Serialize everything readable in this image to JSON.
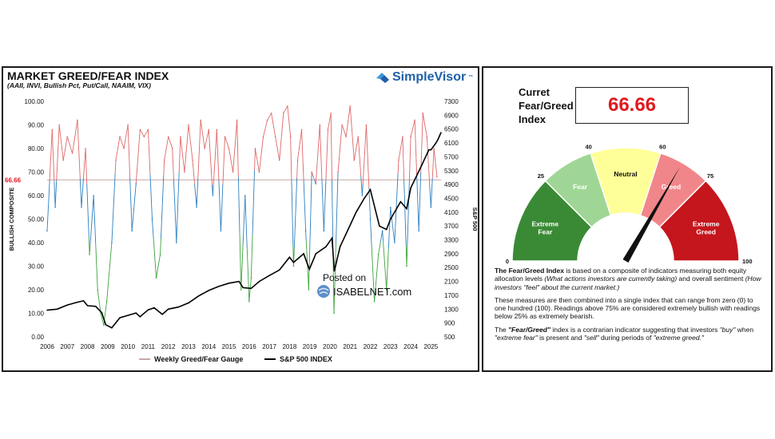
{
  "left": {
    "title": "MARKET GREED/FEAR INDEX",
    "subtitle": "(AAII, INVI, Bullish Pct, Put/Call, NAAIM, VIX)",
    "brand": "SimpleVisor",
    "brand_mark": "™",
    "watermark_line1": "Posted on",
    "watermark_line2": "ISABELNET.com",
    "legend_gauge": "Weekly Greed/Fear Gauge",
    "legend_sp": "S&P 500 INDEX"
  },
  "right": {
    "current_label": "Curret Fear/Greed Index",
    "current_value": "66.66",
    "gauge": {
      "value": 66.66,
      "bands": [
        {
          "label": "Extreme Fear",
          "from": 0,
          "to": 25,
          "color": "#3a8a35",
          "text_color": "#ffffff"
        },
        {
          "label": "Fear",
          "from": 25,
          "to": 40,
          "color": "#9fd695",
          "text_color": "#ffffff"
        },
        {
          "label": "Neutral",
          "from": 40,
          "to": 60,
          "color": "#ffff99",
          "text_color": "#111111"
        },
        {
          "label": "Greed",
          "from": 60,
          "to": 75,
          "color": "#f0868a",
          "text_color": "#ffffff"
        },
        {
          "label": "Extreme Greed",
          "from": 75,
          "to": 100,
          "color": "#c4161c",
          "text_color": "#ffffff"
        }
      ],
      "ticks": [
        {
          "label": "0",
          "value": 0
        },
        {
          "label": "25",
          "value": 25
        },
        {
          "label": "40",
          "value": 40
        },
        {
          "label": "60",
          "value": 60
        },
        {
          "label": "75",
          "value": 75
        },
        {
          "label": "100",
          "value": 100
        }
      ]
    },
    "desc1_bold": "The Fear/Greed Index",
    "desc1_a": " is based on a composite of indicators measuring both equity allocation levels ",
    "desc1_it": "(What actions investors are currently taking)",
    "desc1_b": " and overall sentiment ",
    "desc1_it2": "(How investors \"feel\" about the current market.)",
    "desc2": "These measures are then combined into a single index that can range from zero (0) to one hundred (100). Readings above 75% are considered extremely bullish with readings below 25% as extremely bearish.",
    "desc3_a": "The ",
    "desc3_bold": "\"Fear/Greed\"",
    "desc3_b": " index is a contrarian indicator suggesting that investors ",
    "desc3_it1": "\"buy\"",
    "desc3_c": " when ",
    "desc3_it2": "\"extreme fear\"",
    "desc3_d": " is present and ",
    "desc3_it3": "\"sell\"",
    "desc3_e": " during periods of ",
    "desc3_it4": "\"extreme greed.\""
  },
  "chart_data": {
    "type": "line",
    "title": "MARKET GREED/FEAR INDEX",
    "subtitle": "(AAII, INVI, Bullish Pct, Put/Call, NAAIM, VIX)",
    "ylabel": "BULLISH COMPOSITE",
    "y2label": "S&P 500",
    "xlim": [
      2006,
      2025.5
    ],
    "ylim": [
      0,
      100
    ],
    "y2lim": [
      500,
      7300
    ],
    "x_ticks": [
      "2006",
      "2007",
      "2008",
      "2009",
      "2010",
      "2011",
      "2012",
      "2013",
      "2014",
      "2015",
      "2016",
      "2017",
      "2018",
      "2019",
      "2020",
      "2021",
      "2022",
      "2023",
      "2024",
      "2025"
    ],
    "y_ticks": [
      "0.00",
      "10.00",
      "20.00",
      "30.00",
      "40.00",
      "50.00",
      "60.00",
      "70.00",
      "80.00",
      "90.00",
      "100.00"
    ],
    "y2_ticks": [
      "500",
      "900",
      "1300",
      "1700",
      "2100",
      "2500",
      "2900",
      "3300",
      "3700",
      "4100",
      "4500",
      "4900",
      "5300",
      "5700",
      "6100",
      "6500",
      "6900",
      "7300"
    ],
    "reference_line": {
      "value": 66.66,
      "label": "66.66",
      "color": "#e0191f"
    },
    "colors": {
      "greed": "#e06666",
      "neutral": "#2e7fc0",
      "fear": "#3da33d",
      "sp500": "#000000",
      "reference": "#c8a8a8"
    },
    "series": [
      {
        "name": "Weekly Greed/Fear Gauge",
        "axis": "left",
        "x": [
          2006.0,
          2006.25,
          2006.4,
          2006.6,
          2006.8,
          2007.0,
          2007.25,
          2007.5,
          2007.7,
          2007.9,
          2008.1,
          2008.3,
          2008.5,
          2008.65,
          2008.8,
          2008.95,
          2009.2,
          2009.4,
          2009.6,
          2009.8,
          2010.0,
          2010.2,
          2010.4,
          2010.6,
          2010.8,
          2011.0,
          2011.2,
          2011.4,
          2011.6,
          2011.8,
          2012.0,
          2012.2,
          2012.4,
          2012.6,
          2012.8,
          2013.0,
          2013.2,
          2013.4,
          2013.6,
          2013.8,
          2014.0,
          2014.2,
          2014.4,
          2014.6,
          2014.8,
          2015.0,
          2015.2,
          2015.4,
          2015.6,
          2015.8,
          2016.0,
          2016.1,
          2016.3,
          2016.5,
          2016.7,
          2016.9,
          2017.1,
          2017.3,
          2017.5,
          2017.7,
          2017.9,
          2018.05,
          2018.2,
          2018.4,
          2018.6,
          2018.8,
          2018.95,
          2019.1,
          2019.3,
          2019.5,
          2019.7,
          2019.9,
          2020.05,
          2020.2,
          2020.4,
          2020.6,
          2020.8,
          2021.0,
          2021.2,
          2021.4,
          2021.6,
          2021.8,
          2022.0,
          2022.2,
          2022.4,
          2022.6,
          2022.8,
          2023.0,
          2023.2,
          2023.4,
          2023.6,
          2023.8,
          2024.0,
          2024.2,
          2024.4,
          2024.6,
          2024.8,
          2025.0,
          2025.15,
          2025.3
        ],
        "y": [
          45,
          88,
          55,
          90,
          75,
          85,
          78,
          92,
          55,
          80,
          35,
          60,
          20,
          10,
          5,
          15,
          40,
          75,
          85,
          80,
          90,
          45,
          65,
          88,
          85,
          88,
          50,
          25,
          35,
          75,
          85,
          80,
          40,
          85,
          70,
          90,
          75,
          55,
          92,
          80,
          88,
          60,
          88,
          45,
          85,
          80,
          70,
          92,
          20,
          60,
          15,
          25,
          80,
          70,
          85,
          92,
          95,
          85,
          75,
          95,
          98,
          85,
          30,
          75,
          88,
          45,
          20,
          70,
          65,
          90,
          45,
          88,
          95,
          10,
          70,
          90,
          85,
          98,
          75,
          85,
          60,
          90,
          50,
          15,
          35,
          45,
          20,
          55,
          40,
          75,
          85,
          30,
          85,
          92,
          45,
          95,
          85,
          55,
          80,
          68
        ]
      },
      {
        "name": "S&P 500 INDEX",
        "axis": "right",
        "x": [
          2006.0,
          2006.5,
          2007.0,
          2007.5,
          2007.8,
          2008.0,
          2008.4,
          2008.7,
          2008.9,
          2009.2,
          2009.6,
          2010.0,
          2010.4,
          2010.6,
          2011.0,
          2011.3,
          2011.7,
          2012.0,
          2012.5,
          2013.0,
          2013.5,
          2014.0,
          2014.5,
          2015.0,
          2015.5,
          2015.7,
          2016.1,
          2016.5,
          2017.0,
          2017.5,
          2018.0,
          2018.2,
          2018.7,
          2018.98,
          2019.3,
          2019.8,
          2020.1,
          2020.22,
          2020.5,
          2020.9,
          2021.3,
          2021.7,
          2022.0,
          2022.45,
          2022.8,
          2023.0,
          2023.5,
          2023.8,
          2024.0,
          2024.5,
          2024.9,
          2025.0,
          2025.25,
          2025.35,
          2025.5
        ],
        "y": [
          1270,
          1300,
          1420,
          1500,
          1540,
          1400,
          1380,
          1200,
          850,
          760,
          1050,
          1120,
          1190,
          1080,
          1280,
          1340,
          1150,
          1300,
          1360,
          1480,
          1680,
          1840,
          1960,
          2050,
          2100,
          1920,
          1900,
          2100,
          2270,
          2430,
          2800,
          2650,
          2900,
          2450,
          2900,
          3100,
          3350,
          2400,
          3100,
          3600,
          4100,
          4500,
          4750,
          3700,
          3600,
          3900,
          4400,
          4200,
          4800,
          5400,
          5900,
          5900,
          6100,
          6200,
          6400
        ]
      }
    ]
  }
}
